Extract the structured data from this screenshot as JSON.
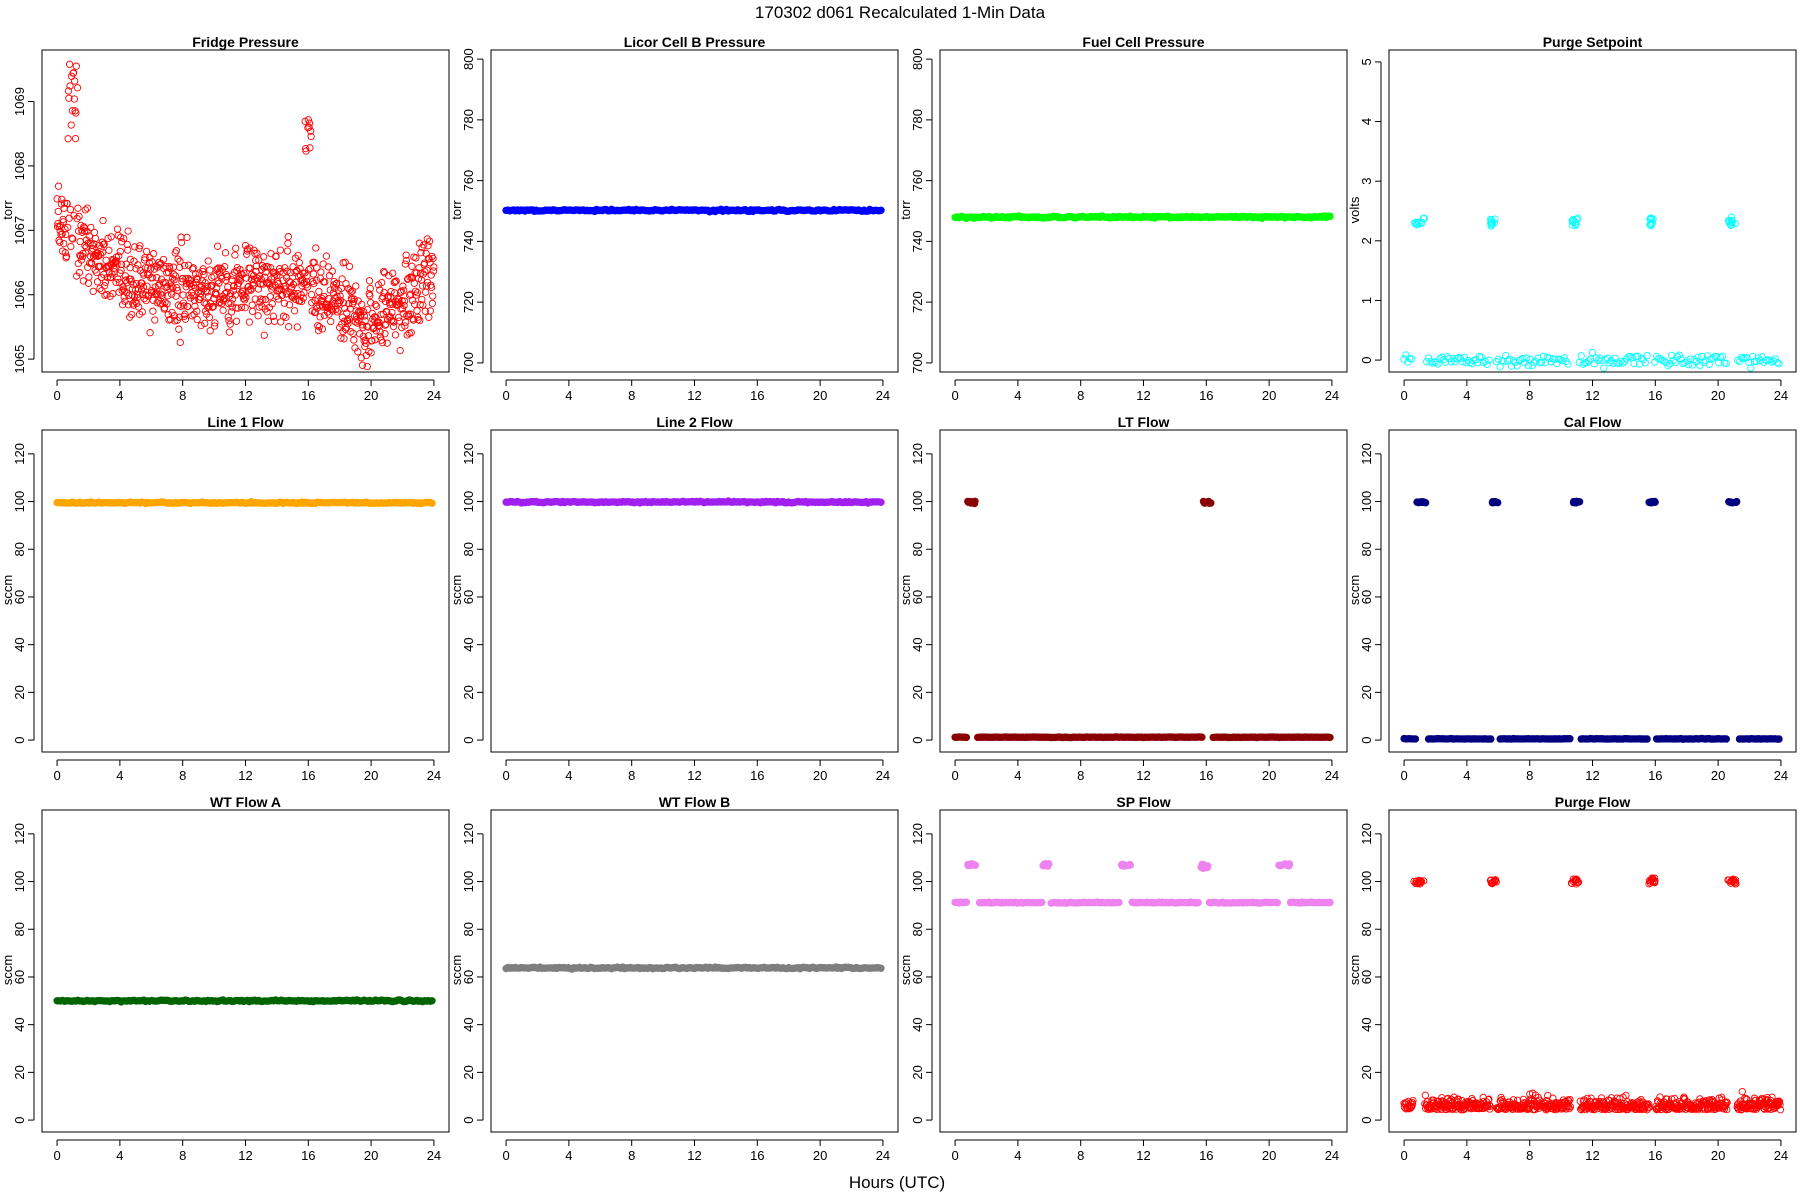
{
  "figure": {
    "title": "170302    d061    Recalculated 1-Min Data",
    "xlabel": "Hours (UTC)"
  },
  "chart_data": [
    {
      "type": "scatter",
      "title": "Fridge Pressure",
      "ylabel": "torr",
      "xlim": [
        0,
        24
      ],
      "ylim": [
        1064.8,
        1069.8
      ],
      "yticks": [
        1065,
        1066,
        1067,
        1068,
        1069
      ],
      "xticks": [
        0,
        4,
        8,
        12,
        16,
        20,
        24
      ],
      "color": "#ff0000",
      "marker": "open-circle",
      "pattern": "fridge",
      "description_values": {
        "start": 1067.2,
        "end": 1066.0,
        "min": 1065.0,
        "spikes": [
          {
            "x_range": [
              0.7,
              1.3
            ],
            "y_range": [
              1068.4,
              1069.6
            ]
          },
          {
            "x_range": [
              15.8,
              16.2
            ],
            "y_range": [
              1068.0,
              1068.8
            ]
          }
        ]
      }
    },
    {
      "type": "scatter",
      "title": "Licor Cell B Pressure",
      "ylabel": "torr",
      "xlim": [
        0,
        24
      ],
      "ylim": [
        697,
        803
      ],
      "yticks": [
        700,
        720,
        740,
        760,
        780,
        800
      ],
      "xticks": [
        0,
        4,
        8,
        12,
        16,
        20,
        24
      ],
      "color": "#0000ff",
      "marker": "filled-circle",
      "pattern": "flat",
      "level": 750.2
    },
    {
      "type": "scatter",
      "title": "Fuel Cell Pressure",
      "ylabel": "torr",
      "xlim": [
        0,
        24
      ],
      "ylim": [
        697,
        803
      ],
      "yticks": [
        700,
        720,
        740,
        760,
        780,
        800
      ],
      "xticks": [
        0,
        4,
        8,
        12,
        16,
        20,
        24
      ],
      "color": "#00ff00",
      "marker": "filled-circle",
      "pattern": "flat",
      "level": 748.0
    },
    {
      "type": "scatter",
      "title": "Purge Setpoint",
      "ylabel": "volts",
      "xlim": [
        0,
        24
      ],
      "ylim": [
        -0.2,
        5.2
      ],
      "yticks": [
        0,
        1,
        2,
        3,
        4,
        5
      ],
      "xticks": [
        0,
        4,
        8,
        12,
        16,
        20,
        24
      ],
      "color": "#00ffff",
      "marker": "open-circle",
      "pattern": "baseline_clusters",
      "level": 0,
      "cluster_level": 2.35,
      "clusters": [
        {
          "x": [
            0.6,
            1.3
          ],
          "y": [
            2.25,
            2.4
          ]
        },
        {
          "x": [
            5.5,
            5.8
          ],
          "y": [
            2.25,
            2.4
          ]
        },
        {
          "x": [
            10.6,
            11.1
          ],
          "y": [
            2.25,
            2.4
          ]
        },
        {
          "x": [
            15.6,
            15.9
          ],
          "y": [
            2.25,
            2.4
          ]
        },
        {
          "x": [
            20.6,
            21.1
          ],
          "y": [
            2.25,
            2.4
          ]
        }
      ]
    },
    {
      "type": "scatter",
      "title": "Line 1 Flow",
      "ylabel": "sccm",
      "xlim": [
        0,
        24
      ],
      "ylim": [
        -5,
        130
      ],
      "yticks": [
        0,
        20,
        40,
        60,
        80,
        100,
        120
      ],
      "xticks": [
        0,
        4,
        8,
        12,
        16,
        20,
        24
      ],
      "color": "#ffa500",
      "marker": "filled-circle",
      "pattern": "flat",
      "level": 99.5
    },
    {
      "type": "scatter",
      "title": "Line 2 Flow",
      "ylabel": "sccm",
      "xlim": [
        0,
        24
      ],
      "ylim": [
        -5,
        130
      ],
      "yticks": [
        0,
        20,
        40,
        60,
        80,
        100,
        120
      ],
      "xticks": [
        0,
        4,
        8,
        12,
        16,
        20,
        24
      ],
      "color": "#a020f0",
      "marker": "filled-circle",
      "pattern": "flat",
      "level": 99.8
    },
    {
      "type": "scatter",
      "title": "LT Flow",
      "ylabel": "sccm",
      "xlim": [
        0,
        24
      ],
      "ylim": [
        -5,
        130
      ],
      "yticks": [
        0,
        20,
        40,
        60,
        80,
        100,
        120
      ],
      "xticks": [
        0,
        4,
        8,
        12,
        16,
        20,
        24
      ],
      "color": "#8b0000",
      "marker": "filled-circle",
      "pattern": "baseline_clusters",
      "level": 1.2,
      "cluster_level": 99.7,
      "clusters": [
        {
          "x": [
            0.8,
            1.3
          ],
          "y": [
            99.2,
            100.1
          ]
        },
        {
          "x": [
            15.8,
            16.3
          ],
          "y": [
            99.2,
            100.1
          ]
        }
      ]
    },
    {
      "type": "scatter",
      "title": "Cal Flow",
      "ylabel": "sccm",
      "xlim": [
        0,
        24
      ],
      "ylim": [
        -5,
        130
      ],
      "yticks": [
        0,
        20,
        40,
        60,
        80,
        100,
        120
      ],
      "xticks": [
        0,
        4,
        8,
        12,
        16,
        20,
        24
      ],
      "color": "#000080",
      "marker": "filled-circle",
      "pattern": "baseline_clusters",
      "level": 0.5,
      "cluster_level": 99.8,
      "clusters": [
        {
          "x": [
            0.8,
            1.4
          ],
          "y": [
            99.5,
            100.1
          ]
        },
        {
          "x": [
            5.6,
            6.0
          ],
          "y": [
            99.5,
            100.1
          ]
        },
        {
          "x": [
            10.7,
            11.2
          ],
          "y": [
            99.5,
            100.1
          ]
        },
        {
          "x": [
            15.6,
            16.0
          ],
          "y": [
            99.5,
            100.1
          ]
        },
        {
          "x": [
            20.6,
            21.2
          ],
          "y": [
            99.5,
            100.1
          ]
        }
      ]
    },
    {
      "type": "scatter",
      "title": "WT Flow A",
      "ylabel": "sccm",
      "xlim": [
        0,
        24
      ],
      "ylim": [
        -5,
        130
      ],
      "yticks": [
        0,
        20,
        40,
        60,
        80,
        100,
        120
      ],
      "xticks": [
        0,
        4,
        8,
        12,
        16,
        20,
        24
      ],
      "color": "#006400",
      "marker": "filled-circle",
      "pattern": "flat",
      "level": 50.0
    },
    {
      "type": "scatter",
      "title": "WT Flow B",
      "ylabel": "sccm",
      "xlim": [
        0,
        24
      ],
      "ylim": [
        -5,
        130
      ],
      "yticks": [
        0,
        20,
        40,
        60,
        80,
        100,
        120
      ],
      "xticks": [
        0,
        4,
        8,
        12,
        16,
        20,
        24
      ],
      "color": "#7f7f7f",
      "marker": "filled-circle",
      "pattern": "flat",
      "level": 63.8
    },
    {
      "type": "scatter",
      "title": "SP Flow",
      "ylabel": "sccm",
      "xlim": [
        0,
        24
      ],
      "ylim": [
        -5,
        130
      ],
      "yticks": [
        0,
        20,
        40,
        60,
        80,
        100,
        120
      ],
      "xticks": [
        0,
        4,
        8,
        12,
        16,
        20,
        24
      ],
      "color": "#ee82ee",
      "marker": "filled-circle",
      "pattern": "baseline_clusters",
      "level": 91.2,
      "cluster_level": 107.0,
      "clusters": [
        {
          "x": [
            0.8,
            1.4
          ],
          "y": [
            106.5,
            107.5
          ]
        },
        {
          "x": [
            5.6,
            6.0
          ],
          "y": [
            106.5,
            107.5
          ]
        },
        {
          "x": [
            10.6,
            11.2
          ],
          "y": [
            106.5,
            107.5
          ]
        },
        {
          "x": [
            15.6,
            16.1
          ],
          "y": [
            105.5,
            107.5
          ]
        },
        {
          "x": [
            20.6,
            21.3
          ],
          "y": [
            106.5,
            107.5
          ]
        }
      ]
    },
    {
      "type": "scatter",
      "title": "Purge Flow",
      "ylabel": "sccm",
      "xlim": [
        0,
        24
      ],
      "ylim": [
        -5,
        130
      ],
      "yticks": [
        0,
        20,
        40,
        60,
        80,
        100,
        120
      ],
      "xticks": [
        0,
        4,
        8,
        12,
        16,
        20,
        24
      ],
      "color": "#ff0000",
      "marker": "open-circle",
      "pattern": "noisy_clusters",
      "level": 5.5,
      "noise": 3.0,
      "cluster_level": 100.0,
      "clusters": [
        {
          "x": [
            0.6,
            1.3
          ],
          "y": [
            99.0,
            101.0
          ]
        },
        {
          "x": [
            5.5,
            5.9
          ],
          "y": [
            99.0,
            101.0
          ]
        },
        {
          "x": [
            10.6,
            11.2
          ],
          "y": [
            99.0,
            101.0
          ]
        },
        {
          "x": [
            15.6,
            16.0
          ],
          "y": [
            99.0,
            101.5
          ]
        },
        {
          "x": [
            20.6,
            21.2
          ],
          "y": [
            99.0,
            101.0
          ]
        }
      ]
    }
  ]
}
